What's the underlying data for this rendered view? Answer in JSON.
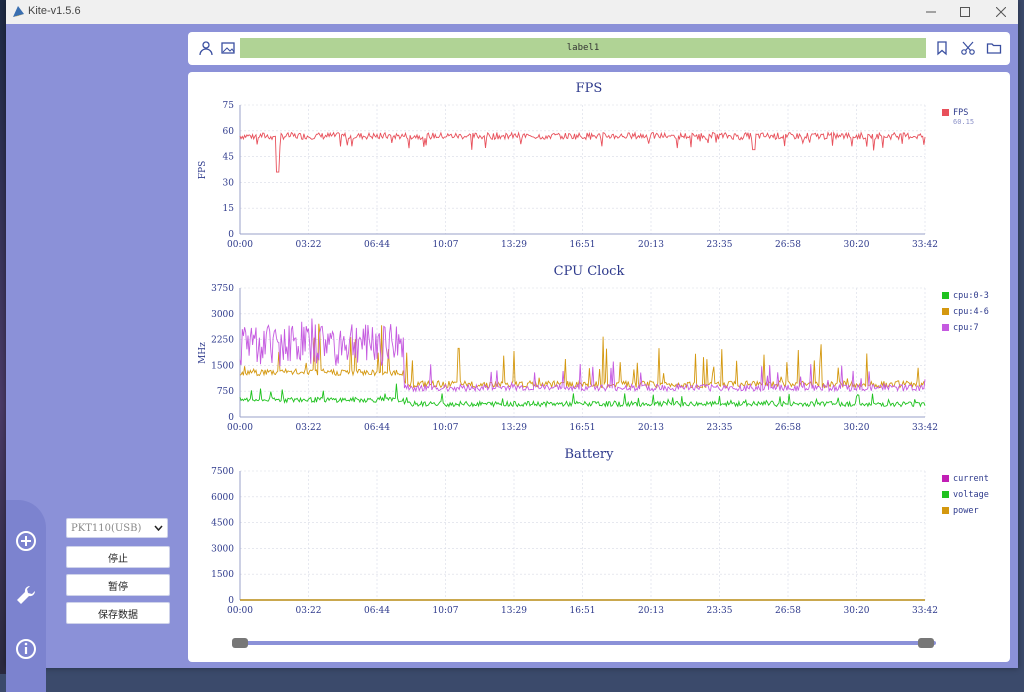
{
  "window": {
    "title": "Kite-v1.5.6"
  },
  "sidebar": {
    "device_select": "PKT110(USB)",
    "stop_label": "停止",
    "pause_label": "暂停",
    "save_label": "保存数据"
  },
  "topbar": {
    "label_value": "label1"
  },
  "charts": {
    "fps": {
      "title": "FPS",
      "ylabel": "FPS",
      "yticks": [
        "75",
        "60",
        "45",
        "30",
        "15",
        "0"
      ],
      "legend": [
        {
          "name": "FPS",
          "color": "#e8505b",
          "value": "60.15"
        }
      ]
    },
    "cpu": {
      "title": "CPU Clock",
      "ylabel": "MHz",
      "yticks": [
        "3750",
        "3000",
        "2250",
        "1500",
        "750",
        "0"
      ],
      "legend": [
        {
          "name": "cpu:0-3",
          "color": "#1fc21f"
        },
        {
          "name": "cpu:4-6",
          "color": "#d4980f"
        },
        {
          "name": "cpu:7",
          "color": "#c55ae0"
        }
      ]
    },
    "battery": {
      "title": "Battery",
      "yticks": [
        "7500",
        "6000",
        "4500",
        "3000",
        "1500",
        "0"
      ],
      "legend": [
        {
          "name": "current",
          "color": "#c21fb5"
        },
        {
          "name": "voltage",
          "color": "#1fc21f"
        },
        {
          "name": "power",
          "color": "#d4980f"
        }
      ]
    }
  },
  "xticks": [
    "00:00",
    "03:22",
    "06:44",
    "10:07",
    "13:29",
    "16:51",
    "20:13",
    "23:35",
    "26:58",
    "30:20",
    "33:42"
  ],
  "chart_data": [
    {
      "type": "line",
      "title": "FPS",
      "ylabel": "FPS",
      "ylim": [
        0,
        75
      ],
      "x_range": [
        "00:00",
        "33:42"
      ],
      "series": [
        {
          "name": "FPS",
          "approx_level": 57,
          "min_dip": 36
        }
      ],
      "grid": true,
      "legend": "top-right"
    },
    {
      "type": "line",
      "title": "CPU Clock",
      "ylabel": "MHz",
      "ylim": [
        0,
        3750
      ],
      "x_range": [
        "00:00",
        "33:42"
      ],
      "series": [
        {
          "name": "cpu:0-3",
          "approx_level": 400
        },
        {
          "name": "cpu:4-6",
          "approx_level": 950,
          "peak": 2400
        },
        {
          "name": "cpu:7",
          "approx_level": 850,
          "early_peak": 2900
        }
      ],
      "grid": true,
      "legend": "top-right"
    },
    {
      "type": "line",
      "title": "Battery",
      "ylim": [
        0,
        7500
      ],
      "x_range": [
        "00:00",
        "33:42"
      ],
      "series": [
        {
          "name": "current",
          "approx_level": 0
        },
        {
          "name": "voltage",
          "approx_level": 0
        },
        {
          "name": "power",
          "approx_level": 0
        }
      ],
      "grid": true,
      "legend": "top-right"
    }
  ],
  "slider": {
    "start": 0,
    "end": 1
  }
}
